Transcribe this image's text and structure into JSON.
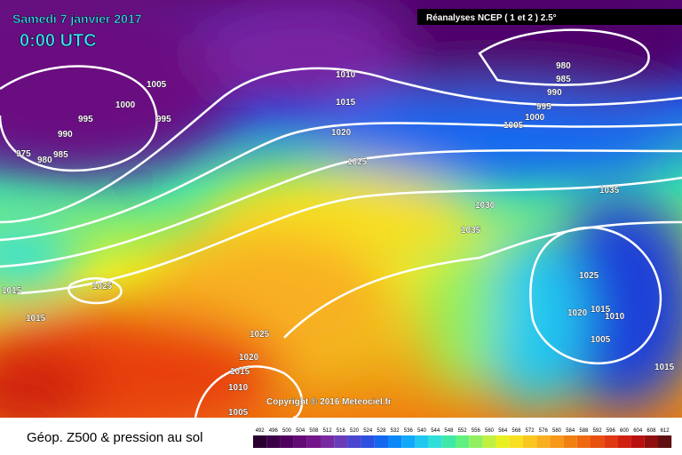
{
  "header": {
    "date": "Samedi 7 janvier 2017",
    "time": "0:00 UTC",
    "source": "Réanalyses NCEP ( 1 et 2 ) 2.5°"
  },
  "isobar_labels": [
    1005,
    1000,
    995,
    995,
    990,
    975,
    980,
    985,
    1010,
    1015,
    1020,
    1025,
    1030,
    1035,
    1035,
    980,
    985,
    990,
    995,
    1000,
    1005,
    1015,
    1025,
    1015,
    1025,
    1020,
    1015,
    1010,
    1005,
    1025,
    1020,
    1015,
    1010,
    1005,
    1015
  ],
  "copyright": "Copyright © 2016 Meteociel.fr",
  "footer": {
    "title": "Géop. Z500 & pression au sol"
  },
  "scale": {
    "labels": [
      492,
      496,
      500,
      504,
      508,
      512,
      516,
      520,
      524,
      528,
      532,
      536,
      540,
      544,
      548,
      552,
      556,
      560,
      564,
      568,
      572,
      576,
      580,
      584,
      588,
      592,
      596,
      600,
      604,
      608,
      612
    ],
    "colors": [
      "#2a0030",
      "#3c0048",
      "#50005e",
      "#640a74",
      "#74148a",
      "#7a2aa0",
      "#6a3cb8",
      "#4a46d0",
      "#2c50e0",
      "#1468f0",
      "#0a88f8",
      "#10a8f8",
      "#20c8f0",
      "#30e0d8",
      "#40e8a8",
      "#60f080",
      "#90f060",
      "#c0f040",
      "#e8f020",
      "#f8e020",
      "#f8c820",
      "#f8b020",
      "#f89818",
      "#f08010",
      "#f06810",
      "#e85010",
      "#e03810",
      "#d02010",
      "#b81010",
      "#901010",
      "#601010"
    ]
  }
}
